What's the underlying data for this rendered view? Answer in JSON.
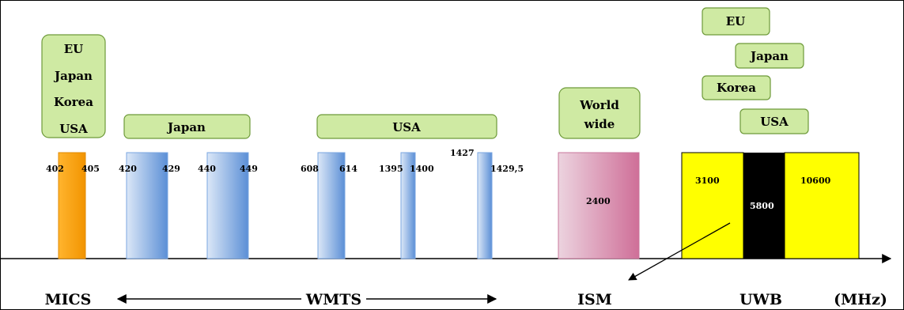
{
  "regions": {
    "mics": [
      "EU",
      "Japan",
      "Korea",
      "USA"
    ],
    "wmts_japan": "Japan",
    "wmts_usa": "USA",
    "ism": [
      "World",
      "wide"
    ],
    "uwb_eu": "EU",
    "uwb_japan": "Japan",
    "uwb_korea": "Korea",
    "uwb_usa": "USA"
  },
  "frequencies": {
    "f402": "402",
    "f405": "405",
    "f420": "420",
    "f429": "429",
    "f440": "440",
    "f449": "449",
    "f608": "608",
    "f614": "614",
    "f1395": "1395",
    "f1400": "1400",
    "f1427": "1427",
    "f1429_5": "1429,5",
    "f2400": "2400",
    "f3100": "3100",
    "f5800": "5800",
    "f10600": "10600"
  },
  "bands": {
    "mics": "MICS",
    "wmts": "WMTS",
    "ism": "ISM",
    "uwb": "UWB"
  },
  "unit": "(MHz)",
  "colors": {
    "region_box": "#cfeaa3",
    "region_border": "#6e9a3a",
    "mics_bar": "#f7a21b",
    "wmts_bar_light": "#dbe7f7",
    "wmts_bar_dark": "#5b8fd6",
    "ism_bar_light": "#ecd3df",
    "ism_bar_dark": "#cf6f98",
    "uwb_yellow": "#ffff00",
    "uwb_black": "#000000"
  }
}
